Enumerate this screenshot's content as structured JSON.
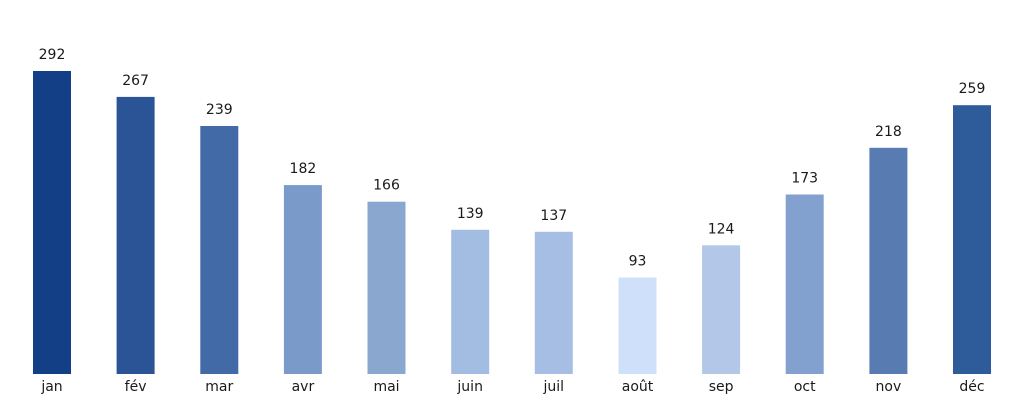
{
  "chart_data": {
    "type": "bar",
    "categories": [
      "jan",
      "fév",
      "mar",
      "avr",
      "mai",
      "juin",
      "juil",
      "août",
      "sep",
      "oct",
      "nov",
      "déc"
    ],
    "values": [
      292,
      267,
      239,
      182,
      166,
      139,
      137,
      93,
      124,
      173,
      218,
      259
    ],
    "colors": [
      "#133f87",
      "#2a5496",
      "#426aa6",
      "#7a9bc9",
      "#8aa7d0",
      "#a3bce2",
      "#a6bee3",
      "#cfe0fa",
      "#b3c7e8",
      "#82a1ce",
      "#587cb1",
      "#2e5b99"
    ],
    "title": "",
    "xlabel": "",
    "ylabel": "",
    "ylim": [
      0,
      292
    ],
    "grid": false,
    "data_labels": true
  }
}
